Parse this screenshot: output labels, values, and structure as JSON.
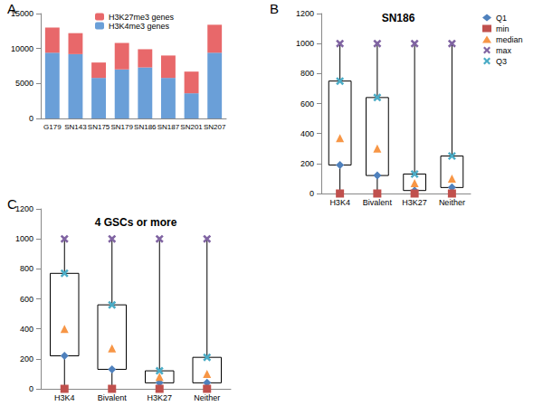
{
  "chart_data": [
    {
      "type": "bar",
      "annotations": [
        "A"
      ],
      "categories": [
        "G179",
        "SN143",
        "SN175",
        "SN179",
        "SN186",
        "SN187",
        "SN201",
        "SN207"
      ],
      "series": [
        {
          "name": "H3K4me3 genes",
          "color": "#6a9fd8",
          "values": [
            9400,
            9200,
            5800,
            7000,
            7300,
            5800,
            3600,
            9400
          ]
        },
        {
          "name": "H3K27me3 genes",
          "color": "#e8686a",
          "values": [
            3600,
            3000,
            2200,
            3800,
            2600,
            3200,
            3100,
            4000
          ]
        }
      ],
      "stacked": true,
      "legend": "top",
      "grid": false,
      "ylim": [
        0,
        15000
      ],
      "yticks": [
        0,
        5000,
        10000,
        15000
      ]
    },
    {
      "type": "scatter",
      "title": "SN186",
      "annotations": [
        "B"
      ],
      "categories": [
        "H3K4",
        "Bivalent",
        "H3K27",
        "Neither"
      ],
      "series": [
        {
          "name": "Q1",
          "color": "#4f81bd",
          "marker": "diamond",
          "values": [
            190,
            120,
            20,
            40
          ]
        },
        {
          "name": "min",
          "color": "#c0504d",
          "marker": "square",
          "values": [
            0,
            0,
            0,
            0
          ]
        },
        {
          "name": "median",
          "color": "#f79646",
          "marker": "triangle",
          "values": [
            370,
            300,
            70,
            100
          ]
        },
        {
          "name": "max",
          "color": "#8064a2",
          "marker": "x",
          "values": [
            1000,
            1000,
            1000,
            1000
          ]
        },
        {
          "name": "Q3",
          "color": "#4bacc6",
          "marker": "x",
          "values": [
            750,
            640,
            130,
            250
          ]
        }
      ],
      "legend": "right",
      "grid": false,
      "ylim": [
        0,
        1200
      ],
      "yticks": [
        0,
        200,
        400,
        600,
        800,
        1000,
        1200
      ]
    },
    {
      "type": "scatter",
      "title": "4 GSCs or more",
      "annotations": [
        "C"
      ],
      "categories": [
        "H3K4",
        "Bivalent",
        "H3K27",
        "Neither"
      ],
      "series": [
        {
          "name": "Q1",
          "color": "#4f81bd",
          "marker": "diamond",
          "values": [
            220,
            130,
            40,
            40
          ]
        },
        {
          "name": "min",
          "color": "#c0504d",
          "marker": "square",
          "values": [
            0,
            0,
            0,
            0
          ]
        },
        {
          "name": "median",
          "color": "#f79646",
          "marker": "triangle",
          "values": [
            400,
            270,
            80,
            100
          ]
        },
        {
          "name": "max",
          "color": "#8064a2",
          "marker": "x",
          "values": [
            1000,
            1000,
            1000,
            1000
          ]
        },
        {
          "name": "Q3",
          "color": "#4bacc6",
          "marker": "x",
          "values": [
            770,
            560,
            120,
            210
          ]
        }
      ],
      "grid": false,
      "ylim": [
        0,
        1200
      ],
      "yticks": [
        0,
        200,
        400,
        600,
        800,
        1000,
        1200
      ]
    }
  ]
}
